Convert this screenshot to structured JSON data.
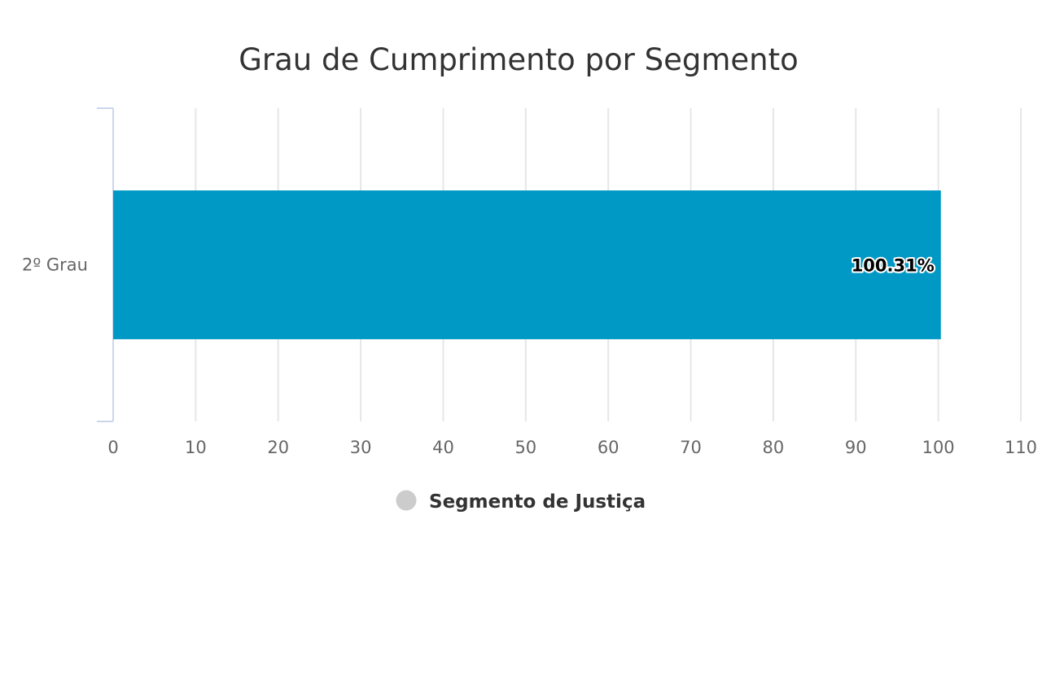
{
  "chart_data": {
    "type": "bar",
    "orientation": "horizontal",
    "title": "Grau de Cumprimento por Segmento",
    "categories": [
      "2º Grau"
    ],
    "series": [
      {
        "name": "Segmento de Justiça",
        "values": [
          100.31
        ],
        "data_labels": [
          "100.31%"
        ],
        "color": "#0099c6"
      }
    ],
    "xlim": [
      0,
      110
    ],
    "x_ticks": [
      0,
      10,
      20,
      30,
      40,
      50,
      60,
      70,
      80,
      90,
      100,
      110
    ],
    "grid": true,
    "legend": {
      "position": "bottom-center",
      "marker_color": "#cccccc"
    }
  }
}
